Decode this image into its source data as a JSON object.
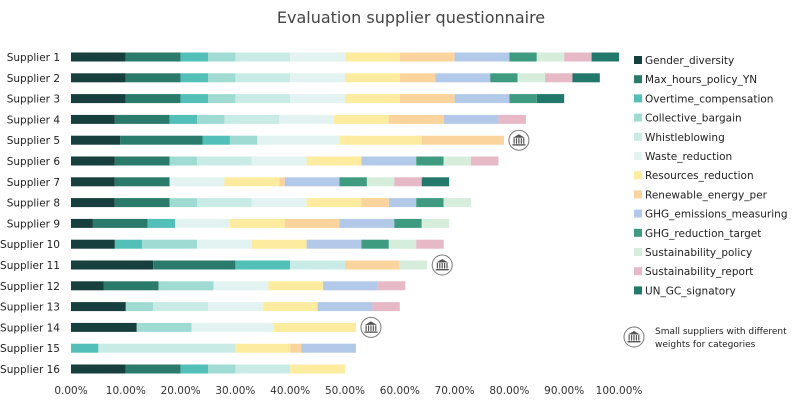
{
  "chart_data": {
    "type": "bar",
    "orientation": "horizontal",
    "stacked": true,
    "title": "Evaluation supplier questionnaire",
    "xlim": [
      0,
      1
    ],
    "x_ticks": [
      "0.00%",
      "10.00%",
      "20.00%",
      "30.00%",
      "40.00%",
      "50.00%",
      "60.00%",
      "70.00%",
      "80.00%",
      "90.00%",
      "100.00%"
    ],
    "categories": [
      "Supplier 1",
      "Supplier 2",
      "Supplier 3",
      "Supplier 4",
      "Supplier 5",
      "Supplier 6",
      "Supplier 7",
      "Supplier 8",
      "Supplier 9",
      "Supplier 10",
      "Supplier 11",
      "Supplier 12",
      "Supplier 13",
      "Supplier 14",
      "Supplier 15",
      "Supplier 16"
    ],
    "legend_position": "right",
    "grid": false,
    "series": [
      {
        "name": "Gender_diversity",
        "color": "#173f3d",
        "values": [
          0.1,
          0.1,
          0.1,
          0.08,
          0.09,
          0.08,
          0.08,
          0.08,
          0.04,
          0.08,
          0.15,
          0.06,
          0.1,
          0.12,
          0.0,
          0.1
        ]
      },
      {
        "name": "Max_hours_policy_YN",
        "color": "#2b7b6c",
        "values": [
          0.1,
          0.1,
          0.1,
          0.1,
          0.15,
          0.1,
          0.1,
          0.1,
          0.1,
          0.0,
          0.15,
          0.1,
          0.0,
          0.0,
          0.0,
          0.1
        ]
      },
      {
        "name": "Overtime_compensation",
        "color": "#52c0b8",
        "values": [
          0.05,
          0.05,
          0.05,
          0.05,
          0.05,
          0.0,
          0.0,
          0.0,
          0.05,
          0.05,
          0.1,
          0.0,
          0.0,
          0.0,
          0.05,
          0.05
        ]
      },
      {
        "name": "Collective_bargain",
        "color": "#9fdbd3",
        "values": [
          0.05,
          0.05,
          0.05,
          0.05,
          0.05,
          0.05,
          0.0,
          0.05,
          0.0,
          0.1,
          0.0,
          0.1,
          0.05,
          0.1,
          0.0,
          0.05
        ]
      },
      {
        "name": "Whistleblowing",
        "color": "#c8ebe6",
        "values": [
          0.1,
          0.1,
          0.1,
          0.1,
          0.0,
          0.1,
          0.0,
          0.1,
          0.0,
          0.0,
          0.1,
          0.0,
          0.1,
          0.0,
          0.25,
          0.1
        ]
      },
      {
        "name": "Waste_reduction",
        "color": "#e3f3f1",
        "values": [
          0.1,
          0.1,
          0.1,
          0.1,
          0.15,
          0.1,
          0.1,
          0.1,
          0.1,
          0.1,
          0.0,
          0.1,
          0.1,
          0.15,
          0.0,
          0.0
        ]
      },
      {
        "name": "Resources_reduction",
        "color": "#fdeba0",
        "values": [
          0.1,
          0.1,
          0.1,
          0.1,
          0.15,
          0.1,
          0.1,
          0.1,
          0.1,
          0.1,
          0.0,
          0.1,
          0.1,
          0.15,
          0.1,
          0.1
        ]
      },
      {
        "name": "Renewable_energy_per",
        "color": "#fbd39c",
        "values": [
          0.1,
          0.065,
          0.1,
          0.1,
          0.15,
          0.0,
          0.01,
          0.05,
          0.1,
          0.0,
          0.1,
          0.0,
          0.0,
          0.0,
          0.02,
          0.0
        ]
      },
      {
        "name": "GHG_emissions_measuring",
        "color": "#b3c9ea",
        "values": [
          0.1,
          0.1,
          0.1,
          0.1,
          0.0,
          0.1,
          0.1,
          0.05,
          0.1,
          0.1,
          0.0,
          0.1,
          0.1,
          0.0,
          0.1,
          0.0
        ]
      },
      {
        "name": "GHG_reduction_target",
        "color": "#3f9b7f",
        "values": [
          0.05,
          0.05,
          0.05,
          0.0,
          0.0,
          0.05,
          0.05,
          0.05,
          0.05,
          0.05,
          0.0,
          0.0,
          0.0,
          0.0,
          0.0,
          0.0
        ]
      },
      {
        "name": "Sustainability_policy",
        "color": "#d6eddb",
        "values": [
          0.05,
          0.05,
          0.0,
          0.0,
          0.0,
          0.05,
          0.05,
          0.05,
          0.05,
          0.05,
          0.05,
          0.0,
          0.0,
          0.0,
          0.0,
          0.0
        ]
      },
      {
        "name": "Sustainability_report",
        "color": "#e7b8c5",
        "values": [
          0.05,
          0.05,
          0.0,
          0.05,
          0.0,
          0.05,
          0.05,
          0.0,
          0.0,
          0.05,
          0.0,
          0.05,
          0.05,
          0.0,
          0.0,
          0.0
        ]
      },
      {
        "name": "UN_GC_signatory",
        "color": "#23786c",
        "values": [
          0.05,
          0.05,
          0.05,
          0.0,
          0.0,
          0.0,
          0.05,
          0.0,
          0.0,
          0.0,
          0.0,
          0.0,
          0.0,
          0.0,
          0.0,
          0.0
        ]
      }
    ],
    "markers": {
      "categories": [
        "Supplier 5",
        "Supplier 11",
        "Supplier 14"
      ],
      "icon": "bank-icon"
    },
    "note": "Small suppliers with different weights for categories"
  }
}
